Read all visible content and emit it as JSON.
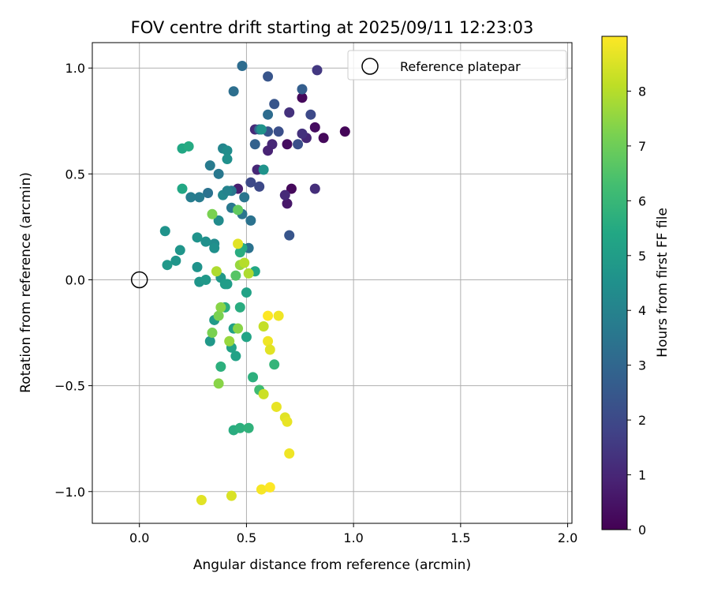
{
  "chart_data": {
    "type": "scatter",
    "title": "FOV centre drift starting at 2025/09/11 12:23:03",
    "xlabel": "Angular distance from reference (arcmin)",
    "ylabel": "Rotation from reference (arcmin)",
    "xlim": [
      -0.22,
      2.02
    ],
    "ylim": [
      -1.15,
      1.12
    ],
    "xticks": [
      0.0,
      0.5,
      1.0,
      1.5,
      2.0
    ],
    "xtick_labels": [
      "0.0",
      "0.5",
      "1.0",
      "1.5",
      "2.0"
    ],
    "yticks": [
      -1.0,
      -0.5,
      0.0,
      0.5,
      1.0
    ],
    "ytick_labels": [
      "−1.0",
      "−0.5",
      "0.0",
      "0.5",
      "1.0"
    ],
    "grid": true,
    "legend": {
      "placement": "top-right",
      "entries": [
        "Reference platepar"
      ]
    },
    "reference_point": {
      "x": 0.0,
      "y": 0.0
    },
    "colorbar": {
      "label": "Hours from first FF file",
      "colormap": "viridis",
      "range": [
        0,
        9
      ],
      "ticks": [
        0,
        1,
        2,
        3,
        4,
        5,
        6,
        7,
        8
      ],
      "tick_labels": [
        "0",
        "1",
        "2",
        "3",
        "4",
        "5",
        "6",
        "7",
        "8"
      ]
    },
    "points": [
      {
        "x": 0.96,
        "y": 0.7,
        "c": 0.1
      },
      {
        "x": 0.86,
        "y": 0.67,
        "c": 0.2
      },
      {
        "x": 0.82,
        "y": 0.72,
        "c": 0.3
      },
      {
        "x": 0.76,
        "y": 0.86,
        "c": 0.2
      },
      {
        "x": 0.71,
        "y": 0.43,
        "c": 0.2
      },
      {
        "x": 0.69,
        "y": 0.64,
        "c": 0.3
      },
      {
        "x": 0.69,
        "y": 0.36,
        "c": 0.6
      },
      {
        "x": 0.82,
        "y": 0.43,
        "c": 1.2
      },
      {
        "x": 0.78,
        "y": 0.67,
        "c": 1.0
      },
      {
        "x": 0.76,
        "y": 0.69,
        "c": 1.3
      },
      {
        "x": 0.62,
        "y": 0.64,
        "c": 1.0
      },
      {
        "x": 0.6,
        "y": 0.61,
        "c": 0.9
      },
      {
        "x": 0.55,
        "y": 0.52,
        "c": 1.0
      },
      {
        "x": 0.46,
        "y": 0.43,
        "c": 0.8
      },
      {
        "x": 0.54,
        "y": 0.71,
        "c": 1.1
      },
      {
        "x": 0.68,
        "y": 0.4,
        "c": 1.1
      },
      {
        "x": 0.7,
        "y": 0.79,
        "c": 1.3
      },
      {
        "x": 0.83,
        "y": 0.99,
        "c": 1.5
      },
      {
        "x": 0.8,
        "y": 0.78,
        "c": 2.0
      },
      {
        "x": 0.74,
        "y": 0.64,
        "c": 2.2
      },
      {
        "x": 0.7,
        "y": 0.21,
        "c": 2.4
      },
      {
        "x": 0.65,
        "y": 0.7,
        "c": 2.2
      },
      {
        "x": 0.63,
        "y": 0.83,
        "c": 2.4
      },
      {
        "x": 0.6,
        "y": 0.96,
        "c": 2.4
      },
      {
        "x": 0.56,
        "y": 0.44,
        "c": 2.0
      },
      {
        "x": 0.52,
        "y": 0.46,
        "c": 2.0
      },
      {
        "x": 0.6,
        "y": 0.7,
        "c": 2.4
      },
      {
        "x": 0.76,
        "y": 0.9,
        "c": 2.7
      },
      {
        "x": 0.54,
        "y": 0.64,
        "c": 2.8
      },
      {
        "x": 0.56,
        "y": 0.71,
        "c": 3.1
      },
      {
        "x": 0.48,
        "y": 1.01,
        "c": 3.2
      },
      {
        "x": 0.44,
        "y": 0.89,
        "c": 3.3
      },
      {
        "x": 0.6,
        "y": 0.78,
        "c": 3.2
      },
      {
        "x": 0.52,
        "y": 0.28,
        "c": 3.4
      },
      {
        "x": 0.51,
        "y": 0.15,
        "c": 3.4
      },
      {
        "x": 0.49,
        "y": 0.39,
        "c": 3.5
      },
      {
        "x": 0.48,
        "y": 0.31,
        "c": 3.5
      },
      {
        "x": 0.43,
        "y": 0.34,
        "c": 3.6
      },
      {
        "x": 0.43,
        "y": 0.42,
        "c": 3.6
      },
      {
        "x": 0.37,
        "y": 0.5,
        "c": 3.6
      },
      {
        "x": 0.32,
        "y": 0.41,
        "c": 3.4
      },
      {
        "x": 0.33,
        "y": 0.54,
        "c": 3.7
      },
      {
        "x": 0.28,
        "y": 0.39,
        "c": 3.7
      },
      {
        "x": 0.24,
        "y": 0.39,
        "c": 3.8
      },
      {
        "x": 0.39,
        "y": 0.4,
        "c": 4.2
      },
      {
        "x": 0.41,
        "y": 0.42,
        "c": 4.0
      },
      {
        "x": 0.39,
        "y": 0.62,
        "c": 4.1
      },
      {
        "x": 0.41,
        "y": 0.61,
        "c": 4.4
      },
      {
        "x": 0.41,
        "y": 0.57,
        "c": 4.5
      },
      {
        "x": 0.58,
        "y": 0.52,
        "c": 4.6
      },
      {
        "x": 0.57,
        "y": 0.71,
        "c": 4.6
      },
      {
        "x": 0.37,
        "y": 0.28,
        "c": 4.3
      },
      {
        "x": 0.35,
        "y": 0.17,
        "c": 4.3
      },
      {
        "x": 0.35,
        "y": 0.15,
        "c": 4.5
      },
      {
        "x": 0.31,
        "y": 0.18,
        "c": 4.5
      },
      {
        "x": 0.27,
        "y": 0.2,
        "c": 4.6
      },
      {
        "x": 0.12,
        "y": 0.23,
        "c": 4.6
      },
      {
        "x": 0.19,
        "y": 0.14,
        "c": 4.7
      },
      {
        "x": 0.17,
        "y": 0.09,
        "c": 4.7
      },
      {
        "x": 0.13,
        "y": 0.07,
        "c": 4.8
      },
      {
        "x": 0.27,
        "y": 0.06,
        "c": 4.6
      },
      {
        "x": 0.28,
        "y": -0.01,
        "c": 4.7
      },
      {
        "x": 0.31,
        "y": 0.0,
        "c": 4.8
      },
      {
        "x": 0.38,
        "y": 0.01,
        "c": 4.8
      },
      {
        "x": 0.4,
        "y": -0.02,
        "c": 5.0
      },
      {
        "x": 0.41,
        "y": -0.02,
        "c": 5.0
      },
      {
        "x": 0.35,
        "y": -0.19,
        "c": 4.9
      },
      {
        "x": 0.33,
        "y": -0.29,
        "c": 4.8
      },
      {
        "x": 0.44,
        "y": -0.23,
        "c": 5.1
      },
      {
        "x": 0.43,
        "y": -0.32,
        "c": 5.2
      },
      {
        "x": 0.45,
        "y": -0.36,
        "c": 5.2
      },
      {
        "x": 0.5,
        "y": -0.27,
        "c": 5.3
      },
      {
        "x": 0.5,
        "y": -0.06,
        "c": 5.2
      },
      {
        "x": 0.54,
        "y": 0.04,
        "c": 5.4
      },
      {
        "x": 0.48,
        "y": 0.15,
        "c": 5.5
      },
      {
        "x": 0.47,
        "y": 0.13,
        "c": 5.6
      },
      {
        "x": 0.2,
        "y": 0.62,
        "c": 5.4
      },
      {
        "x": 0.23,
        "y": 0.63,
        "c": 5.5
      },
      {
        "x": 0.2,
        "y": 0.43,
        "c": 5.4
      },
      {
        "x": 0.4,
        "y": -0.13,
        "c": 5.6
      },
      {
        "x": 0.47,
        "y": -0.13,
        "c": 5.6
      },
      {
        "x": 0.38,
        "y": -0.41,
        "c": 5.7
      },
      {
        "x": 0.53,
        "y": -0.46,
        "c": 5.7
      },
      {
        "x": 0.63,
        "y": -0.4,
        "c": 5.9
      },
      {
        "x": 0.44,
        "y": -0.71,
        "c": 5.6
      },
      {
        "x": 0.47,
        "y": -0.7,
        "c": 5.7
      },
      {
        "x": 0.51,
        "y": -0.7,
        "c": 5.8
      },
      {
        "x": 0.56,
        "y": -0.52,
        "c": 6.2
      },
      {
        "x": 0.45,
        "y": 0.02,
        "c": 6.6
      },
      {
        "x": 0.46,
        "y": 0.33,
        "c": 6.8
      },
      {
        "x": 0.34,
        "y": 0.31,
        "c": 7.2
      },
      {
        "x": 0.34,
        "y": -0.25,
        "c": 7.2
      },
      {
        "x": 0.37,
        "y": -0.17,
        "c": 7.2
      },
      {
        "x": 0.38,
        "y": -0.13,
        "c": 7.4
      },
      {
        "x": 0.37,
        "y": -0.49,
        "c": 7.4
      },
      {
        "x": 0.42,
        "y": -0.29,
        "c": 7.6
      },
      {
        "x": 0.46,
        "y": -0.23,
        "c": 7.4
      },
      {
        "x": 0.47,
        "y": 0.07,
        "c": 7.6
      },
      {
        "x": 0.49,
        "y": 0.08,
        "c": 8.0
      },
      {
        "x": 0.51,
        "y": 0.03,
        "c": 7.9
      },
      {
        "x": 0.36,
        "y": 0.04,
        "c": 7.9
      },
      {
        "x": 0.46,
        "y": 0.17,
        "c": 8.6
      },
      {
        "x": 0.58,
        "y": -0.22,
        "c": 8.2
      },
      {
        "x": 0.58,
        "y": -0.54,
        "c": 8.3
      },
      {
        "x": 0.6,
        "y": -0.29,
        "c": 8.8
      },
      {
        "x": 0.61,
        "y": -0.33,
        "c": 8.6
      },
      {
        "x": 0.6,
        "y": -0.17,
        "c": 9.0
      },
      {
        "x": 0.65,
        "y": -0.17,
        "c": 8.8
      },
      {
        "x": 0.64,
        "y": -0.6,
        "c": 8.7
      },
      {
        "x": 0.68,
        "y": -0.65,
        "c": 8.6
      },
      {
        "x": 0.69,
        "y": -0.67,
        "c": 8.7
      },
      {
        "x": 0.7,
        "y": -0.82,
        "c": 8.8
      },
      {
        "x": 0.29,
        "y": -1.04,
        "c": 8.6
      },
      {
        "x": 0.43,
        "y": -1.02,
        "c": 8.5
      },
      {
        "x": 0.57,
        "y": -0.99,
        "c": 8.9
      },
      {
        "x": 0.61,
        "y": -0.98,
        "c": 9.0
      }
    ]
  }
}
